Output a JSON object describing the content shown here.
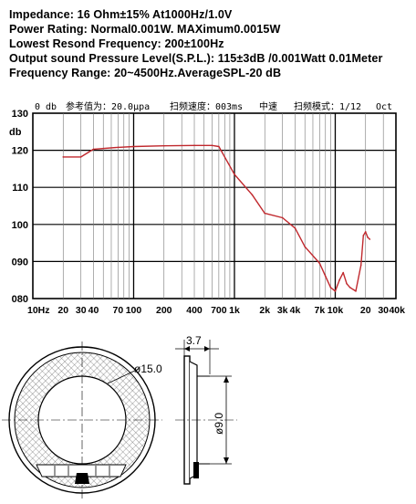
{
  "specs": {
    "impedance": "Impedance: 16 Ohm±15% At1000Hz/1.0V",
    "power": "Power Rating: Normal0.001W. MAXimum0.0015W",
    "resonance": "Lowest Resond Frequency: 200±100Hz",
    "spl": "Output sound Pressure Level(S.P.L.): 115±3dB /0.001Watt 0.01Meter",
    "range": "Frequency Range: 20~4500Hz.AverageSPL-20 dB"
  },
  "chart_header": {
    "db_ref": "0 db",
    "reference": "参考值为：20.0μpa",
    "sweep": "扫频速度：003ms",
    "mode": "中速",
    "sweep_mode": "扫频模式：1/12",
    "oct": "Oct"
  },
  "chart_data": {
    "type": "line",
    "xscale": "log",
    "ylabel": "db",
    "xlim": [
      10,
      40000
    ],
    "ylim": [
      80,
      130
    ],
    "grid": true,
    "y_ticks": [
      "130",
      "120",
      "110",
      "100",
      "090",
      "080"
    ],
    "x_ticks": [
      "10Hz",
      "20",
      "30",
      "40",
      "70",
      "100",
      "200",
      "400",
      "700",
      "1k",
      "2k",
      "3k",
      "4k",
      "7k",
      "10k",
      "20",
      "30",
      "40k"
    ],
    "series": [
      {
        "color": "#c0282d",
        "x": [
          20,
          30,
          40,
          70,
          100,
          200,
          400,
          600,
          700,
          1000,
          1500,
          2000,
          3000,
          4000,
          5000,
          7000,
          8000,
          9000,
          10000,
          11000,
          12000,
          13000,
          14000,
          16000,
          18000,
          19000,
          20000,
          21000,
          22000
        ],
        "y": [
          118.2,
          118.2,
          120.3,
          120.8,
          121.0,
          121.2,
          121.3,
          121.3,
          121.0,
          113.5,
          108.0,
          103.0,
          101.8,
          99.0,
          94.0,
          89.5,
          86.0,
          83.0,
          82.0,
          85.0,
          87.0,
          84.0,
          83.0,
          82.0,
          89.0,
          97.0,
          98.0,
          96.5,
          96.0
        ]
      }
    ]
  },
  "drawing": {
    "outer_diameter": "ø15.0",
    "inner_diameter": "ø9.0",
    "thickness": "3.7"
  }
}
